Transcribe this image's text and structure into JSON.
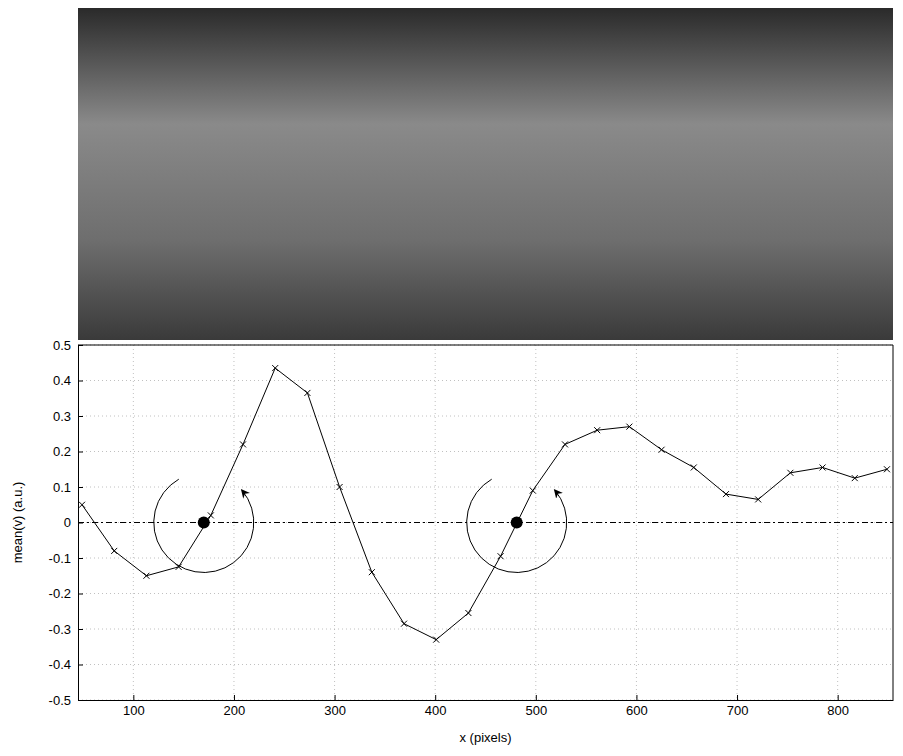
{
  "chart_data": {
    "type": "line",
    "x_label": "x (pixels)",
    "y_label": "mean(v) (a.u.)",
    "x": [
      49,
      81,
      113,
      145,
      177,
      209,
      241,
      273,
      305,
      337,
      369,
      401,
      433,
      465,
      497,
      529,
      561,
      593,
      625,
      657,
      689,
      721,
      753,
      785,
      817,
      849
    ],
    "values": [
      0.05,
      -0.08,
      -0.15,
      -0.125,
      0.02,
      0.22,
      0.435,
      0.365,
      0.1,
      -0.14,
      -0.285,
      -0.33,
      -0.255,
      -0.095,
      0.09,
      0.22,
      0.26,
      0.27,
      0.205,
      0.155,
      0.08,
      0.065,
      0.14,
      0.155,
      0.125,
      0.15
    ],
    "color": "#000000",
    "marker": "x",
    "line_style": "solid",
    "xlim": [
      45,
      855
    ],
    "xticks": [
      100,
      200,
      300,
      400,
      500,
      600,
      700,
      800
    ],
    "ylim": [
      -0.5,
      0.5
    ],
    "yticks": [
      -0.5,
      -0.4,
      -0.3,
      -0.2,
      -0.1,
      0,
      0.1,
      0.2,
      0.3,
      0.4,
      0.5
    ],
    "grid": true,
    "hline": 0,
    "annotation_points": {
      "x": [
        170,
        481
      ],
      "y": [
        0,
        0
      ]
    }
  }
}
